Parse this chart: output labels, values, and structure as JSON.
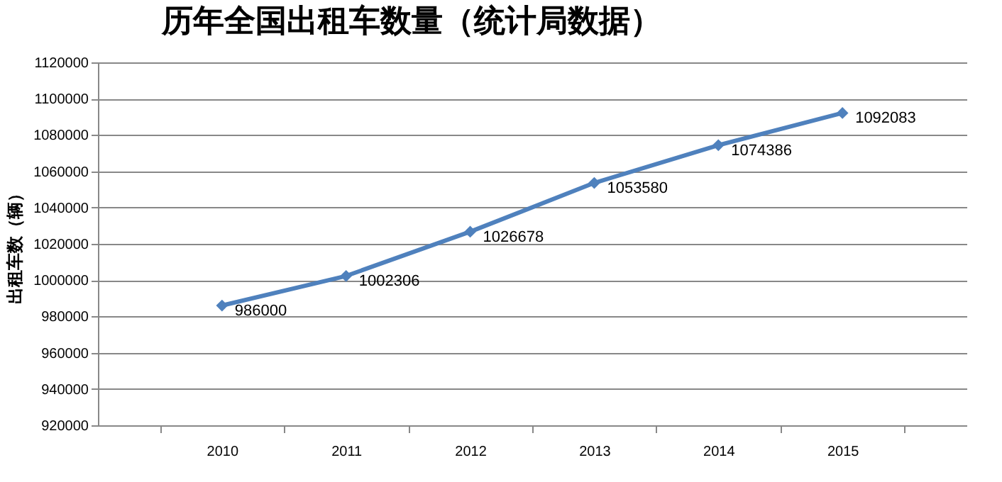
{
  "chart_data": {
    "type": "line",
    "title": "历年全国出租车数量（统计局数据）",
    "ylabel": "出租车数（辆）",
    "categories": [
      "2010",
      "2011",
      "2012",
      "2013",
      "2014",
      "2015"
    ],
    "series": [
      {
        "color": "#4f81bd",
        "values": [
          986000,
          1002306,
          1026678,
          1053580,
          1074386,
          1092083
        ]
      }
    ],
    "ylim": [
      920000,
      1120000
    ],
    "yticks": [
      920000,
      940000,
      960000,
      980000,
      1000000,
      1020000,
      1040000,
      1060000,
      1080000,
      1100000,
      1120000
    ],
    "grid": "y",
    "marker": "diamond",
    "data_labels": true,
    "legend": false
  }
}
